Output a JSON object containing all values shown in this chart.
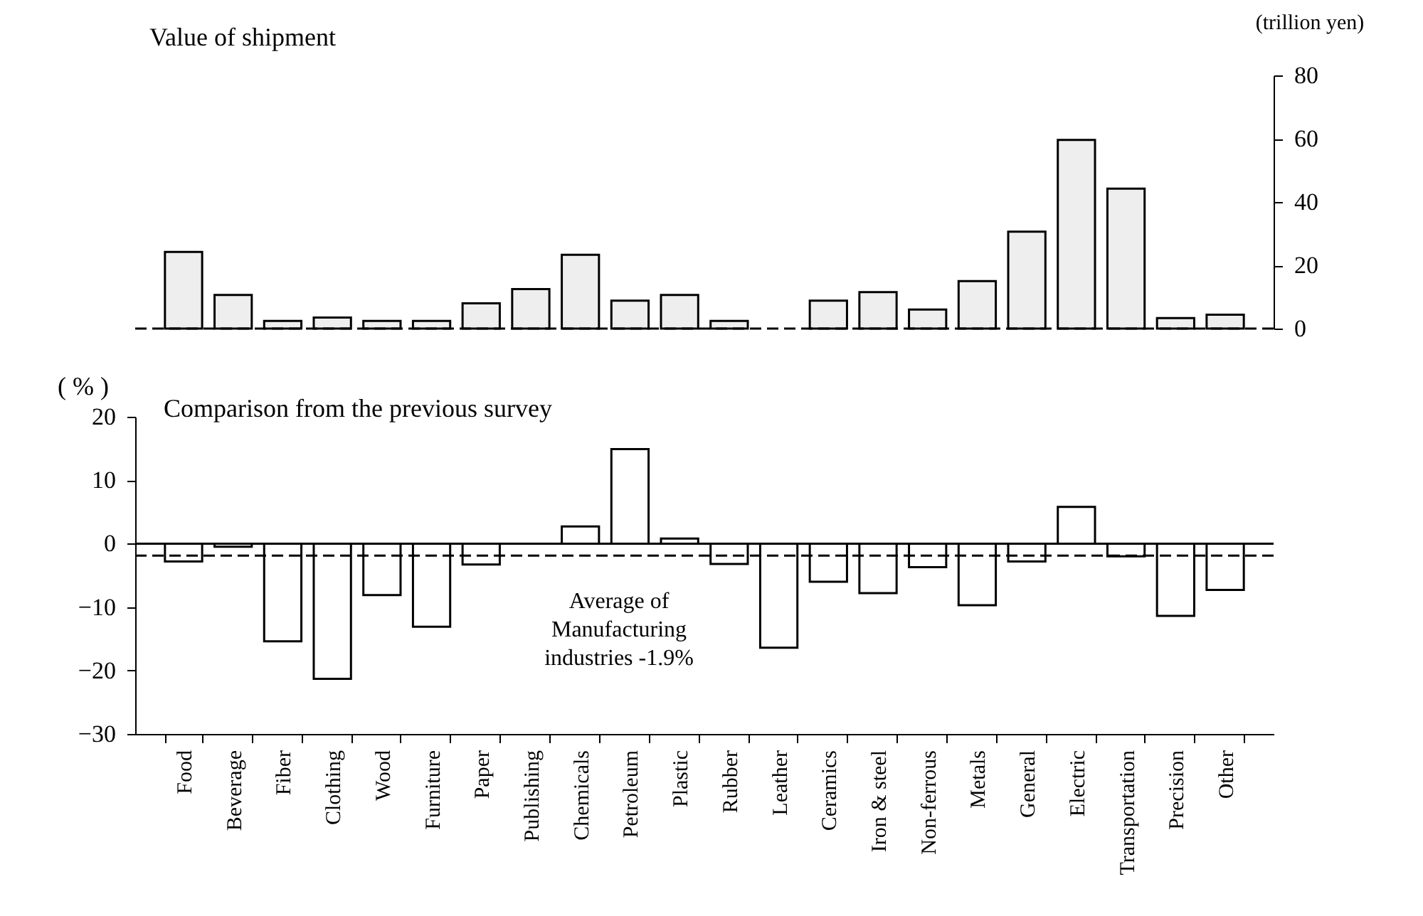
{
  "chart_data": [
    {
      "type": "bar",
      "title": "Value of shipment",
      "ylabel": "(trillion yen)",
      "categories": [
        null,
        null,
        null,
        null,
        null,
        null,
        null,
        null,
        null,
        null,
        null,
        null,
        null,
        null,
        null,
        null,
        null,
        null,
        null,
        null,
        null,
        null
      ],
      "values": [
        24.2,
        10.6,
        2.4,
        3.5,
        2.4,
        2.4,
        8,
        12.5,
        23.3,
        8.8,
        10.6,
        2.4,
        null,
        8.8,
        11.5,
        6,
        15,
        30.6,
        59.6,
        44.2,
        3.3,
        4.4
      ],
      "color": "#eeeeee",
      "ylim": [
        0,
        80
      ],
      "yticks": [
        0,
        20,
        40,
        60,
        80
      ],
      "tick_labels": "y",
      "grid": false,
      "legend": false,
      "ref_lines": [
        {
          "axis": "y",
          "value": 0,
          "line_style": "dashed"
        }
      ]
    },
    {
      "type": "bar",
      "title": "Comparison from the previous survey",
      "ylabel": "( % )",
      "categories": [
        "Food",
        "Beverage",
        "Fiber",
        "Clothing",
        "Wood",
        "Furniture",
        "Paper",
        "Publishing",
        "Chemicals",
        "Petroleum",
        "Plastic",
        "Rubber",
        "Leather",
        "Ceramics",
        "Iron & steel",
        "Non-ferrous",
        "Metals",
        "General",
        "Electric",
        "Transportation",
        "Precision",
        "Other"
      ],
      "values": [
        -2.8,
        -0.5,
        -15.4,
        -21.3,
        -8.1,
        -13.1,
        -3.3,
        null,
        2.7,
        14.9,
        0.8,
        -3.2,
        -16.4,
        -6,
        -7.8,
        -3.7,
        -9.7,
        -2.8,
        5.8,
        -2,
        -11.4,
        -7.3
      ],
      "color": "#ffffff",
      "ylim": [
        -30,
        20
      ],
      "yticks": [
        -30,
        -20,
        -10,
        0,
        10,
        20
      ],
      "grid": false,
      "legend": false,
      "ref_lines": [
        {
          "axis": "y",
          "value": 0,
          "line_style": "solid"
        },
        {
          "axis": "y",
          "value": -1.9,
          "label": "Average of Manufacturing industries -1.9%",
          "line_style": "dashed"
        }
      ]
    }
  ]
}
